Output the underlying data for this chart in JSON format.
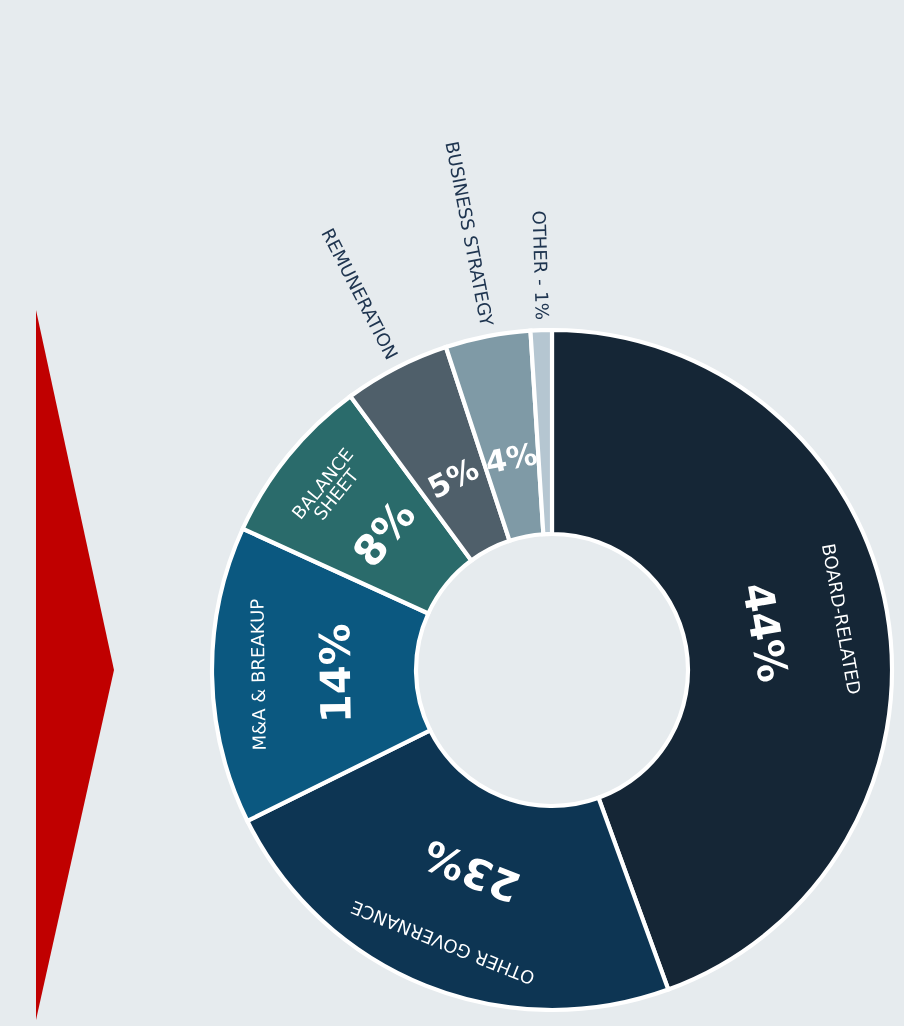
{
  "chart_data": {
    "type": "donut",
    "categories": [
      "BOARD-RELATED",
      "OTHER GOVERNANCE",
      "M&A & BREAKUP",
      "BALANCE SHEET",
      "REMUNERATION",
      "BUSINESS STRATEGY",
      "OTHER - 1%"
    ],
    "values": [
      44,
      23,
      14,
      8,
      5,
      4,
      1
    ],
    "value_labels": [
      "44%",
      "23%",
      "14%",
      "8%",
      "5%",
      "4%",
      null
    ],
    "colors": [
      "#152636",
      "#0d3553",
      "#0b5880",
      "#2a6b6b",
      "#4f5f6a",
      "#7f9aa6",
      "#b5c6d1"
    ]
  }
}
